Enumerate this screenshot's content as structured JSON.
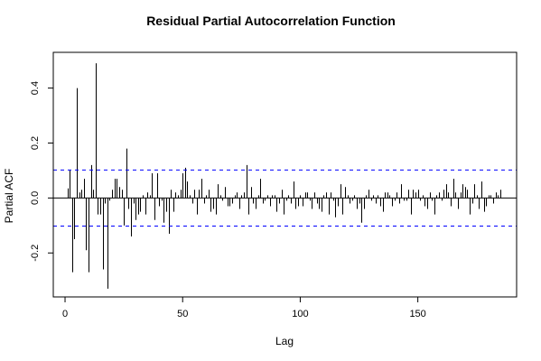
{
  "chart_data": {
    "type": "bar",
    "title": "Residual Partial Autocorrelation Function",
    "xlabel": "Lag",
    "ylabel": "Partial ACF",
    "xlim": [
      -5,
      192
    ],
    "ylim": [
      -0.36,
      0.53
    ],
    "xticks": [
      0,
      50,
      100,
      150
    ],
    "xtick_labels": [
      "0",
      "50",
      "100",
      "150"
    ],
    "yticks": [
      -0.2,
      0.0,
      0.2,
      0.4
    ],
    "ytick_labels": [
      "-0.2",
      "0.0",
      "0.2",
      "0.4"
    ],
    "confidence_limits": [
      0.102,
      -0.102
    ],
    "grid": false,
    "x": [
      1,
      2,
      3,
      4,
      5,
      6,
      7,
      8,
      9,
      10,
      11,
      12,
      13,
      14,
      15,
      16,
      17,
      18,
      19,
      20,
      21,
      22,
      23,
      24,
      25,
      26,
      27,
      28,
      29,
      30,
      31,
      32,
      33,
      34,
      35,
      36,
      37,
      38,
      39,
      40,
      41,
      42,
      43,
      44,
      45,
      46,
      47,
      48,
      49,
      50,
      51,
      52,
      53,
      54,
      55,
      56,
      57,
      58,
      59,
      60,
      61,
      62,
      63,
      64,
      65,
      66,
      67,
      68,
      69,
      70,
      71,
      72,
      73,
      74,
      75,
      76,
      77,
      78,
      79,
      80,
      81,
      82,
      83,
      84,
      85,
      86,
      87,
      88,
      89,
      90,
      91,
      92,
      93,
      94,
      95,
      96,
      97,
      98,
      99,
      100,
      101,
      102,
      103,
      104,
      105,
      106,
      107,
      108,
      109,
      110,
      111,
      112,
      113,
      114,
      115,
      116,
      117,
      118,
      119,
      120,
      121,
      122,
      123,
      124,
      125,
      126,
      127,
      128,
      129,
      130,
      131,
      132,
      133,
      134,
      135,
      136,
      137,
      138,
      139,
      140,
      141,
      142,
      143,
      144,
      145,
      146,
      147,
      148,
      149,
      150,
      151,
      152,
      153,
      154,
      155,
      156,
      157,
      158,
      159,
      160,
      161,
      162,
      163,
      164,
      165,
      166,
      167,
      168,
      169,
      170,
      171,
      172,
      173,
      174,
      175,
      176,
      177,
      178,
      179,
      180,
      181,
      182,
      183,
      184,
      185
    ],
    "values": [
      0.035,
      0.1,
      -0.27,
      -0.15,
      0.4,
      0.02,
      0.03,
      0.07,
      -0.19,
      -0.27,
      0.12,
      0.03,
      0.49,
      -0.06,
      -0.06,
      -0.26,
      -0.02,
      -0.33,
      -0.01,
      0.03,
      0.07,
      0.07,
      0.04,
      0.03,
      -0.1,
      0.18,
      -0.04,
      -0.14,
      -0.02,
      -0.08,
      -0.06,
      -0.05,
      0.01,
      -0.06,
      0.02,
      0.01,
      0.09,
      -0.08,
      0.09,
      -0.03,
      -0.01,
      -0.09,
      -0.05,
      -0.13,
      0.03,
      -0.05,
      0.02,
      0.01,
      0.03,
      0.09,
      0.11,
      0.06,
      0.01,
      -0.02,
      0.03,
      -0.06,
      0.03,
      0.07,
      -0.02,
      0.01,
      0.03,
      -0.05,
      -0.04,
      -0.06,
      0.05,
      0.01,
      -0.01,
      0.04,
      -0.03,
      -0.03,
      -0.02,
      0.01,
      0.02,
      -0.04,
      0.01,
      0.02,
      0.12,
      -0.06,
      0.04,
      -0.02,
      -0.04,
      0.01,
      0.07,
      -0.02,
      -0.01,
      0.01,
      -0.03,
      0.01,
      0.01,
      -0.05,
      -0.02,
      0.03,
      -0.06,
      -0.01,
      0.01,
      -0.02,
      0.06,
      -0.04,
      -0.03,
      0.01,
      -0.03,
      0.02,
      0.02,
      -0.01,
      -0.04,
      0.02,
      -0.02,
      -0.04,
      -0.05,
      0.01,
      0.02,
      -0.06,
      0.02,
      -0.01,
      -0.07,
      -0.03,
      0.05,
      -0.06,
      0.04,
      0.01,
      -0.02,
      -0.01,
      0.01,
      -0.04,
      -0.02,
      -0.09,
      -0.04,
      0.01,
      0.03,
      -0.01,
      0.01,
      -0.02,
      0.01,
      -0.03,
      -0.05,
      0.02,
      0.02,
      0.01,
      -0.03,
      -0.01,
      0.02,
      -0.02,
      0.05,
      -0.01,
      -0.01,
      0.03,
      -0.06,
      0.03,
      0.02,
      0.03,
      -0.01,
      0.01,
      -0.03,
      -0.04,
      0.02,
      -0.01,
      -0.06,
      0.01,
      0.02,
      -0.01,
      0.03,
      0.05,
      0.02,
      -0.03,
      0.07,
      0.02,
      -0.04,
      0.02,
      0.05,
      0.04,
      0.03,
      -0.06,
      -0.02,
      0.05,
      0.01,
      -0.04,
      0.06,
      -0.05,
      -0.03,
      0.01,
      0.01,
      -0.02,
      0.02,
      0.01,
      0.03
    ]
  }
}
